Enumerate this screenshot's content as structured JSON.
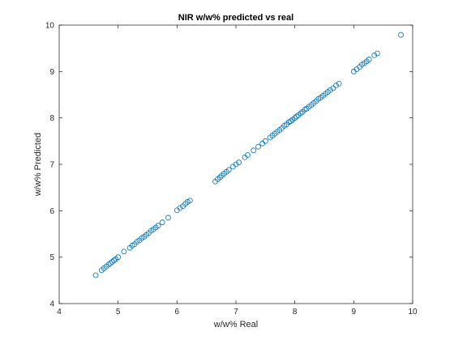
{
  "chart_data": {
    "type": "scatter",
    "title": "NIR w/w% predicted vs real",
    "xlabel": "w/w% Real",
    "ylabel": "w/w% Predicted",
    "xlim": [
      4,
      10
    ],
    "ylim": [
      4,
      10
    ],
    "xticks": [
      "4",
      "5",
      "6",
      "7",
      "8",
      "9",
      "10"
    ],
    "yticks": [
      "4",
      "5",
      "6",
      "7",
      "8",
      "9",
      "10"
    ],
    "grid": false,
    "marker": "open-circle",
    "color": "#0072BD",
    "series": [
      {
        "x": [
          4.62,
          4.72,
          4.76,
          4.8,
          4.84,
          4.87,
          4.9,
          4.93,
          4.96,
          5.0,
          5.1,
          5.2,
          5.24,
          5.28,
          5.32,
          5.36,
          5.4,
          5.44,
          5.48,
          5.52,
          5.56,
          5.6,
          5.64,
          5.68,
          5.75,
          5.85,
          6.0,
          6.05,
          6.1,
          6.14,
          6.18,
          6.22,
          6.65,
          6.69,
          6.73,
          6.76,
          6.8,
          6.84,
          6.88,
          6.95,
          7.0,
          7.05,
          7.15,
          7.2,
          7.3,
          7.38,
          7.45,
          7.5,
          7.58,
          7.62,
          7.66,
          7.7,
          7.74,
          7.78,
          7.82,
          7.86,
          7.9,
          7.93,
          7.96,
          8.0,
          8.03,
          8.06,
          8.1,
          8.13,
          8.17,
          8.2,
          8.24,
          8.28,
          8.32,
          8.36,
          8.4,
          8.44,
          8.48,
          8.52,
          8.56,
          8.6,
          8.65,
          8.7,
          8.75,
          9.0,
          9.05,
          9.1,
          9.14,
          9.18,
          9.22,
          9.26,
          9.35,
          9.4,
          9.8
        ],
        "y": [
          4.61,
          4.72,
          4.76,
          4.8,
          4.84,
          4.87,
          4.9,
          4.93,
          4.96,
          5.0,
          5.12,
          5.2,
          5.25,
          5.28,
          5.33,
          5.36,
          5.41,
          5.44,
          5.48,
          5.52,
          5.57,
          5.6,
          5.64,
          5.68,
          5.75,
          5.85,
          6.01,
          6.06,
          6.1,
          6.15,
          6.19,
          6.22,
          6.63,
          6.68,
          6.72,
          6.76,
          6.8,
          6.84,
          6.88,
          6.95,
          7.0,
          7.04,
          7.15,
          7.2,
          7.3,
          7.38,
          7.45,
          7.5,
          7.58,
          7.62,
          7.66,
          7.7,
          7.74,
          7.78,
          7.83,
          7.86,
          7.91,
          7.93,
          7.96,
          8.0,
          8.03,
          8.06,
          8.1,
          8.13,
          8.18,
          8.2,
          8.24,
          8.28,
          8.32,
          8.36,
          8.41,
          8.44,
          8.48,
          8.52,
          8.56,
          8.6,
          8.64,
          8.7,
          8.74,
          9.0,
          9.05,
          9.1,
          9.15,
          9.18,
          9.22,
          9.26,
          9.35,
          9.39,
          9.79
        ]
      }
    ]
  }
}
